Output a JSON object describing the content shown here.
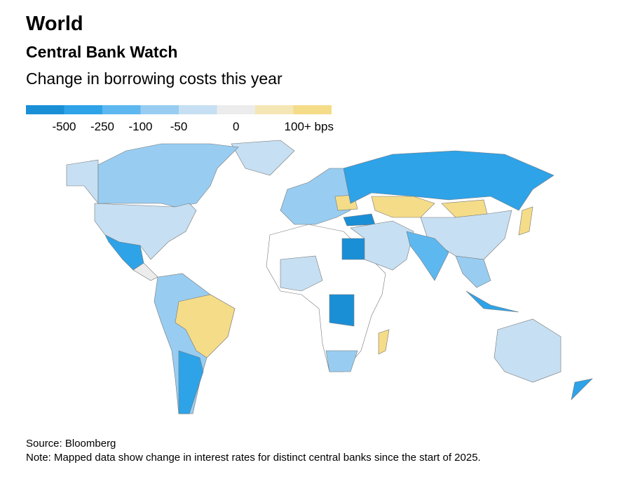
{
  "header": {
    "title": "World",
    "subtitle": "Central Bank Watch",
    "description": "Change in borrowing costs this year"
  },
  "legend": {
    "colors": [
      "#1a8fd6",
      "#2ea3e8",
      "#5db8f0",
      "#98cdf1",
      "#c6dff2",
      "#ececec",
      "#f5e6b5",
      "#f5dc88"
    ],
    "labels": [
      "-500",
      "-250",
      "-100",
      "-50",
      "0",
      "100+ bps"
    ]
  },
  "footer": {
    "source": "Source: Bloomberg",
    "note": "Note: Mapped data show change in interest rates for distinct central banks since the start of 2025."
  }
}
